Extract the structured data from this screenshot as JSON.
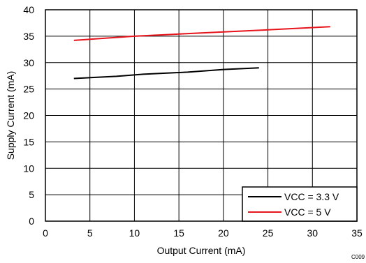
{
  "chart_data": {
    "type": "line",
    "xlabel": "Output Current (mA)",
    "ylabel": "Supply Current (mA)",
    "xlim": [
      0,
      35
    ],
    "ylim": [
      0,
      40
    ],
    "xticks": [
      0,
      5,
      10,
      15,
      20,
      25,
      30,
      35
    ],
    "yticks": [
      0,
      5,
      10,
      15,
      20,
      25,
      30,
      35,
      40
    ],
    "grid": true,
    "legend_position": "bottom-right",
    "series": [
      {
        "name": "VCC = 3.3 V",
        "color": "#000000",
        "x": [
          3.2,
          8,
          11,
          16,
          20,
          24
        ],
        "y": [
          27.0,
          27.4,
          27.8,
          28.2,
          28.7,
          29.0
        ]
      },
      {
        "name": "VCC = 5 V",
        "color": "#e8141b",
        "x": [
          3.2,
          10,
          15,
          20,
          25,
          32
        ],
        "y": [
          34.2,
          35.0,
          35.4,
          35.8,
          36.2,
          36.8
        ]
      }
    ],
    "code": "C009"
  }
}
